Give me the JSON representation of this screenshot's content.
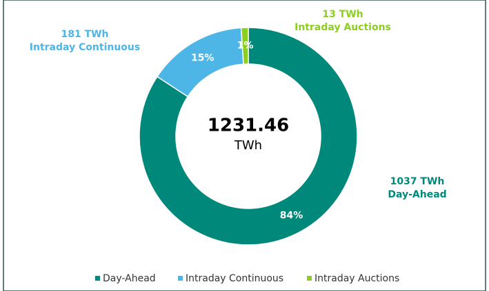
{
  "chart_data": {
    "type": "donut",
    "categories": [
      "Day-Ahead",
      "Intraday Continuous",
      "Intraday Auctions"
    ],
    "values": [
      1037,
      181,
      13
    ],
    "value_labels": [
      "1037 TWh",
      "181 TWh",
      "13 TWh"
    ],
    "percent_labels": [
      "84%",
      "15%",
      "1%"
    ],
    "colors": [
      "#00897b",
      "#4db6e6",
      "#8ccf1e"
    ],
    "total": 1231.46,
    "total_unit": "TWh",
    "legend": "bottom"
  }
}
